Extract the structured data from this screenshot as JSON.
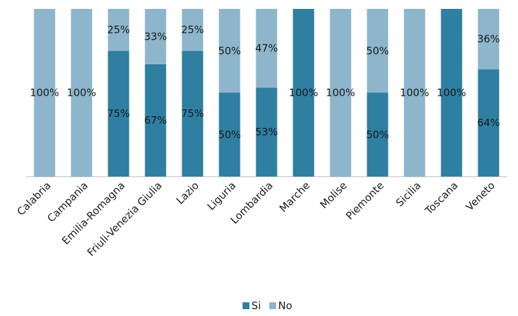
{
  "chart_data": {
    "type": "bar",
    "stacked": true,
    "percent": true,
    "categories": [
      "Calabria",
      "Campania",
      "Emilia-Romagna",
      "Friuli-Venezia Giulia",
      "Lazio",
      "Liguria",
      "Lombardia",
      "Marche",
      "Molise",
      "Piemonte",
      "Sicilia",
      "Toscana",
      "Veneto"
    ],
    "series": [
      {
        "name": "Si",
        "color": "#2e7fa1",
        "values": [
          0,
          0,
          75,
          67,
          75,
          50,
          53,
          100,
          0,
          50,
          0,
          100,
          64
        ]
      },
      {
        "name": "No",
        "color": "#8db5cc",
        "values": [
          100,
          100,
          25,
          33,
          25,
          50,
          47,
          0,
          100,
          50,
          100,
          0,
          36
        ]
      }
    ],
    "ylim": [
      0,
      100
    ],
    "value_suffix": "%",
    "grid": false,
    "legend": "bottom"
  }
}
